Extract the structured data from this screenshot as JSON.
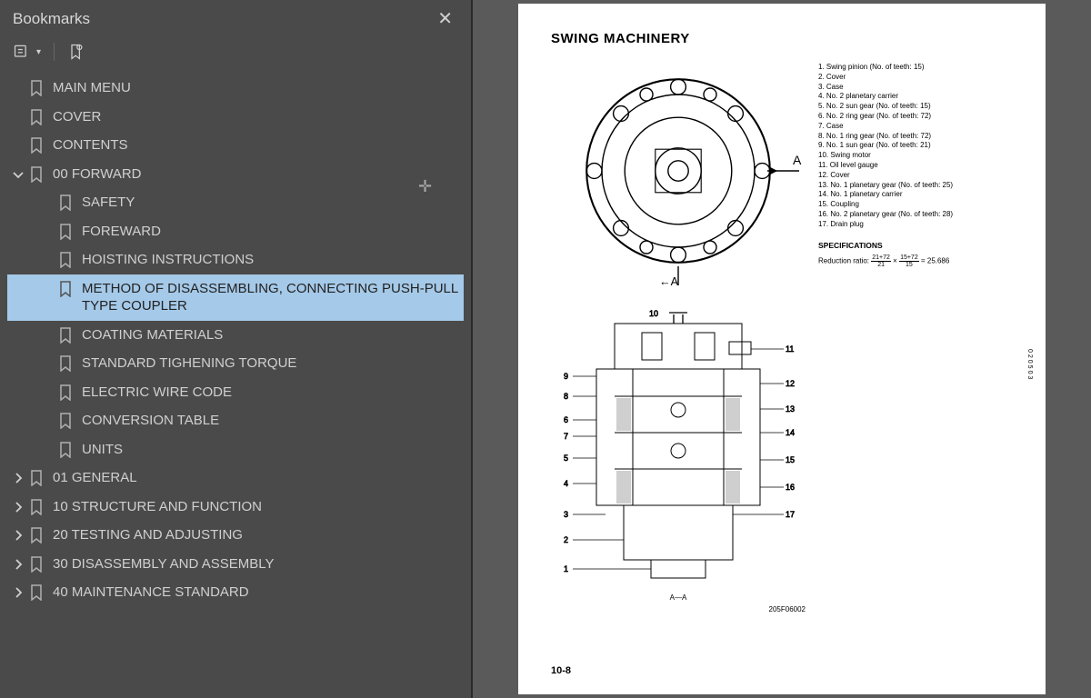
{
  "sidebar": {
    "title": "Bookmarks",
    "items": [
      {
        "label": "MAIN MENU",
        "expand": null,
        "indent": 0
      },
      {
        "label": "COVER",
        "expand": null,
        "indent": 0
      },
      {
        "label": "CONTENTS",
        "expand": null,
        "indent": 0
      },
      {
        "label": "00 FORWARD",
        "expand": "open",
        "indent": 0
      },
      {
        "label": "SAFETY",
        "expand": null,
        "indent": 1
      },
      {
        "label": "FOREWARD",
        "expand": null,
        "indent": 1
      },
      {
        "label": "HOISTING INSTRUCTIONS",
        "expand": null,
        "indent": 1
      },
      {
        "label": "METHOD OF DISASSEMBLING, CONNECTING PUSH-PULL TYPE COUPLER",
        "expand": null,
        "indent": 1,
        "selected": true
      },
      {
        "label": "COATING MATERIALS",
        "expand": null,
        "indent": 1
      },
      {
        "label": "STANDARD TIGHENING TORQUE",
        "expand": null,
        "indent": 1
      },
      {
        "label": "ELECTRIC WIRE CODE",
        "expand": null,
        "indent": 1
      },
      {
        "label": "CONVERSION TABLE",
        "expand": null,
        "indent": 1
      },
      {
        "label": "UNITS",
        "expand": null,
        "indent": 1
      },
      {
        "label": "01 GENERAL",
        "expand": "closed",
        "indent": 0
      },
      {
        "label": "10 STRUCTURE AND FUNCTION",
        "expand": "closed",
        "indent": 0
      },
      {
        "label": "20 TESTING AND ADJUSTING",
        "expand": "closed",
        "indent": 0
      },
      {
        "label": "30 DISASSEMBLY AND ASSEMBLY",
        "expand": "closed",
        "indent": 0
      },
      {
        "label": "40 MAINTENANCE STANDARD",
        "expand": "closed",
        "indent": 0
      }
    ]
  },
  "page": {
    "title": "SWING MACHINERY",
    "parts": [
      "1.  Swing pinion (No. of teeth: 15)",
      "2.  Cover",
      "3.  Case",
      "4.  No. 2 planetary carrier",
      "5.  No. 2 sun gear (No. of teeth: 15)",
      "6.  No. 2 ring gear (No. of teeth: 72)",
      "7.  Case",
      "8.  No. 1 ring gear (No. of teeth: 72)",
      "9.  No. 1 sun gear (No. of teeth: 21)",
      "10. Swing motor",
      "11. Oil level gauge",
      "12. Cover",
      "13. No. 1 planetary gear  (No. of teeth: 25)",
      "14. No. 1 planetary carrier",
      "15. Coupling",
      "16. No. 2 planetary gear  (No. of teeth: 28)",
      "17. Drain plug"
    ],
    "spec_title": "SPECIFICATIONS",
    "spec_prefix": "Reduction ratio:",
    "spec_result": "= 25.686",
    "section_label_top": "A",
    "section_label_bottom": "A",
    "aa_label": "A—A",
    "fig_code": "205F06002",
    "side_code": "020503",
    "page_number": "10-8",
    "callouts_top": [
      "A",
      "←A"
    ],
    "callouts_section": {
      "left": [
        "9",
        "8",
        "6",
        "7",
        "5",
        "4",
        "3",
        "2",
        "1"
      ],
      "right": [
        "10",
        "11",
        "12",
        "13",
        "14",
        "15",
        "16",
        "17"
      ]
    }
  }
}
